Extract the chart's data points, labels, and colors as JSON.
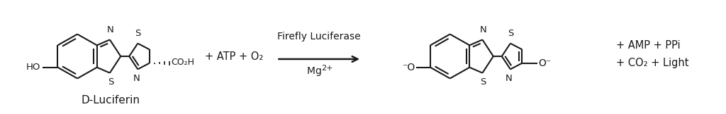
{
  "bg_color": "#ffffff",
  "fig_width": 10.24,
  "fig_height": 1.62,
  "dpi": 100,
  "title_label": "D-Luciferin",
  "arrow_label_top": "Firefly Luciferase",
  "arrow_label_bottom": "Mg ",
  "reactants_text": "+ ATP + O₂",
  "products_text_line1": "+ AMP + PPi",
  "products_text_line2": "+ CO₂ + Light",
  "text_color": "#1a1a1a",
  "arrow_color": "#1a1a1a",
  "line_color": "#1a1a1a",
  "font_size": 9.5,
  "font_family": "Arial"
}
